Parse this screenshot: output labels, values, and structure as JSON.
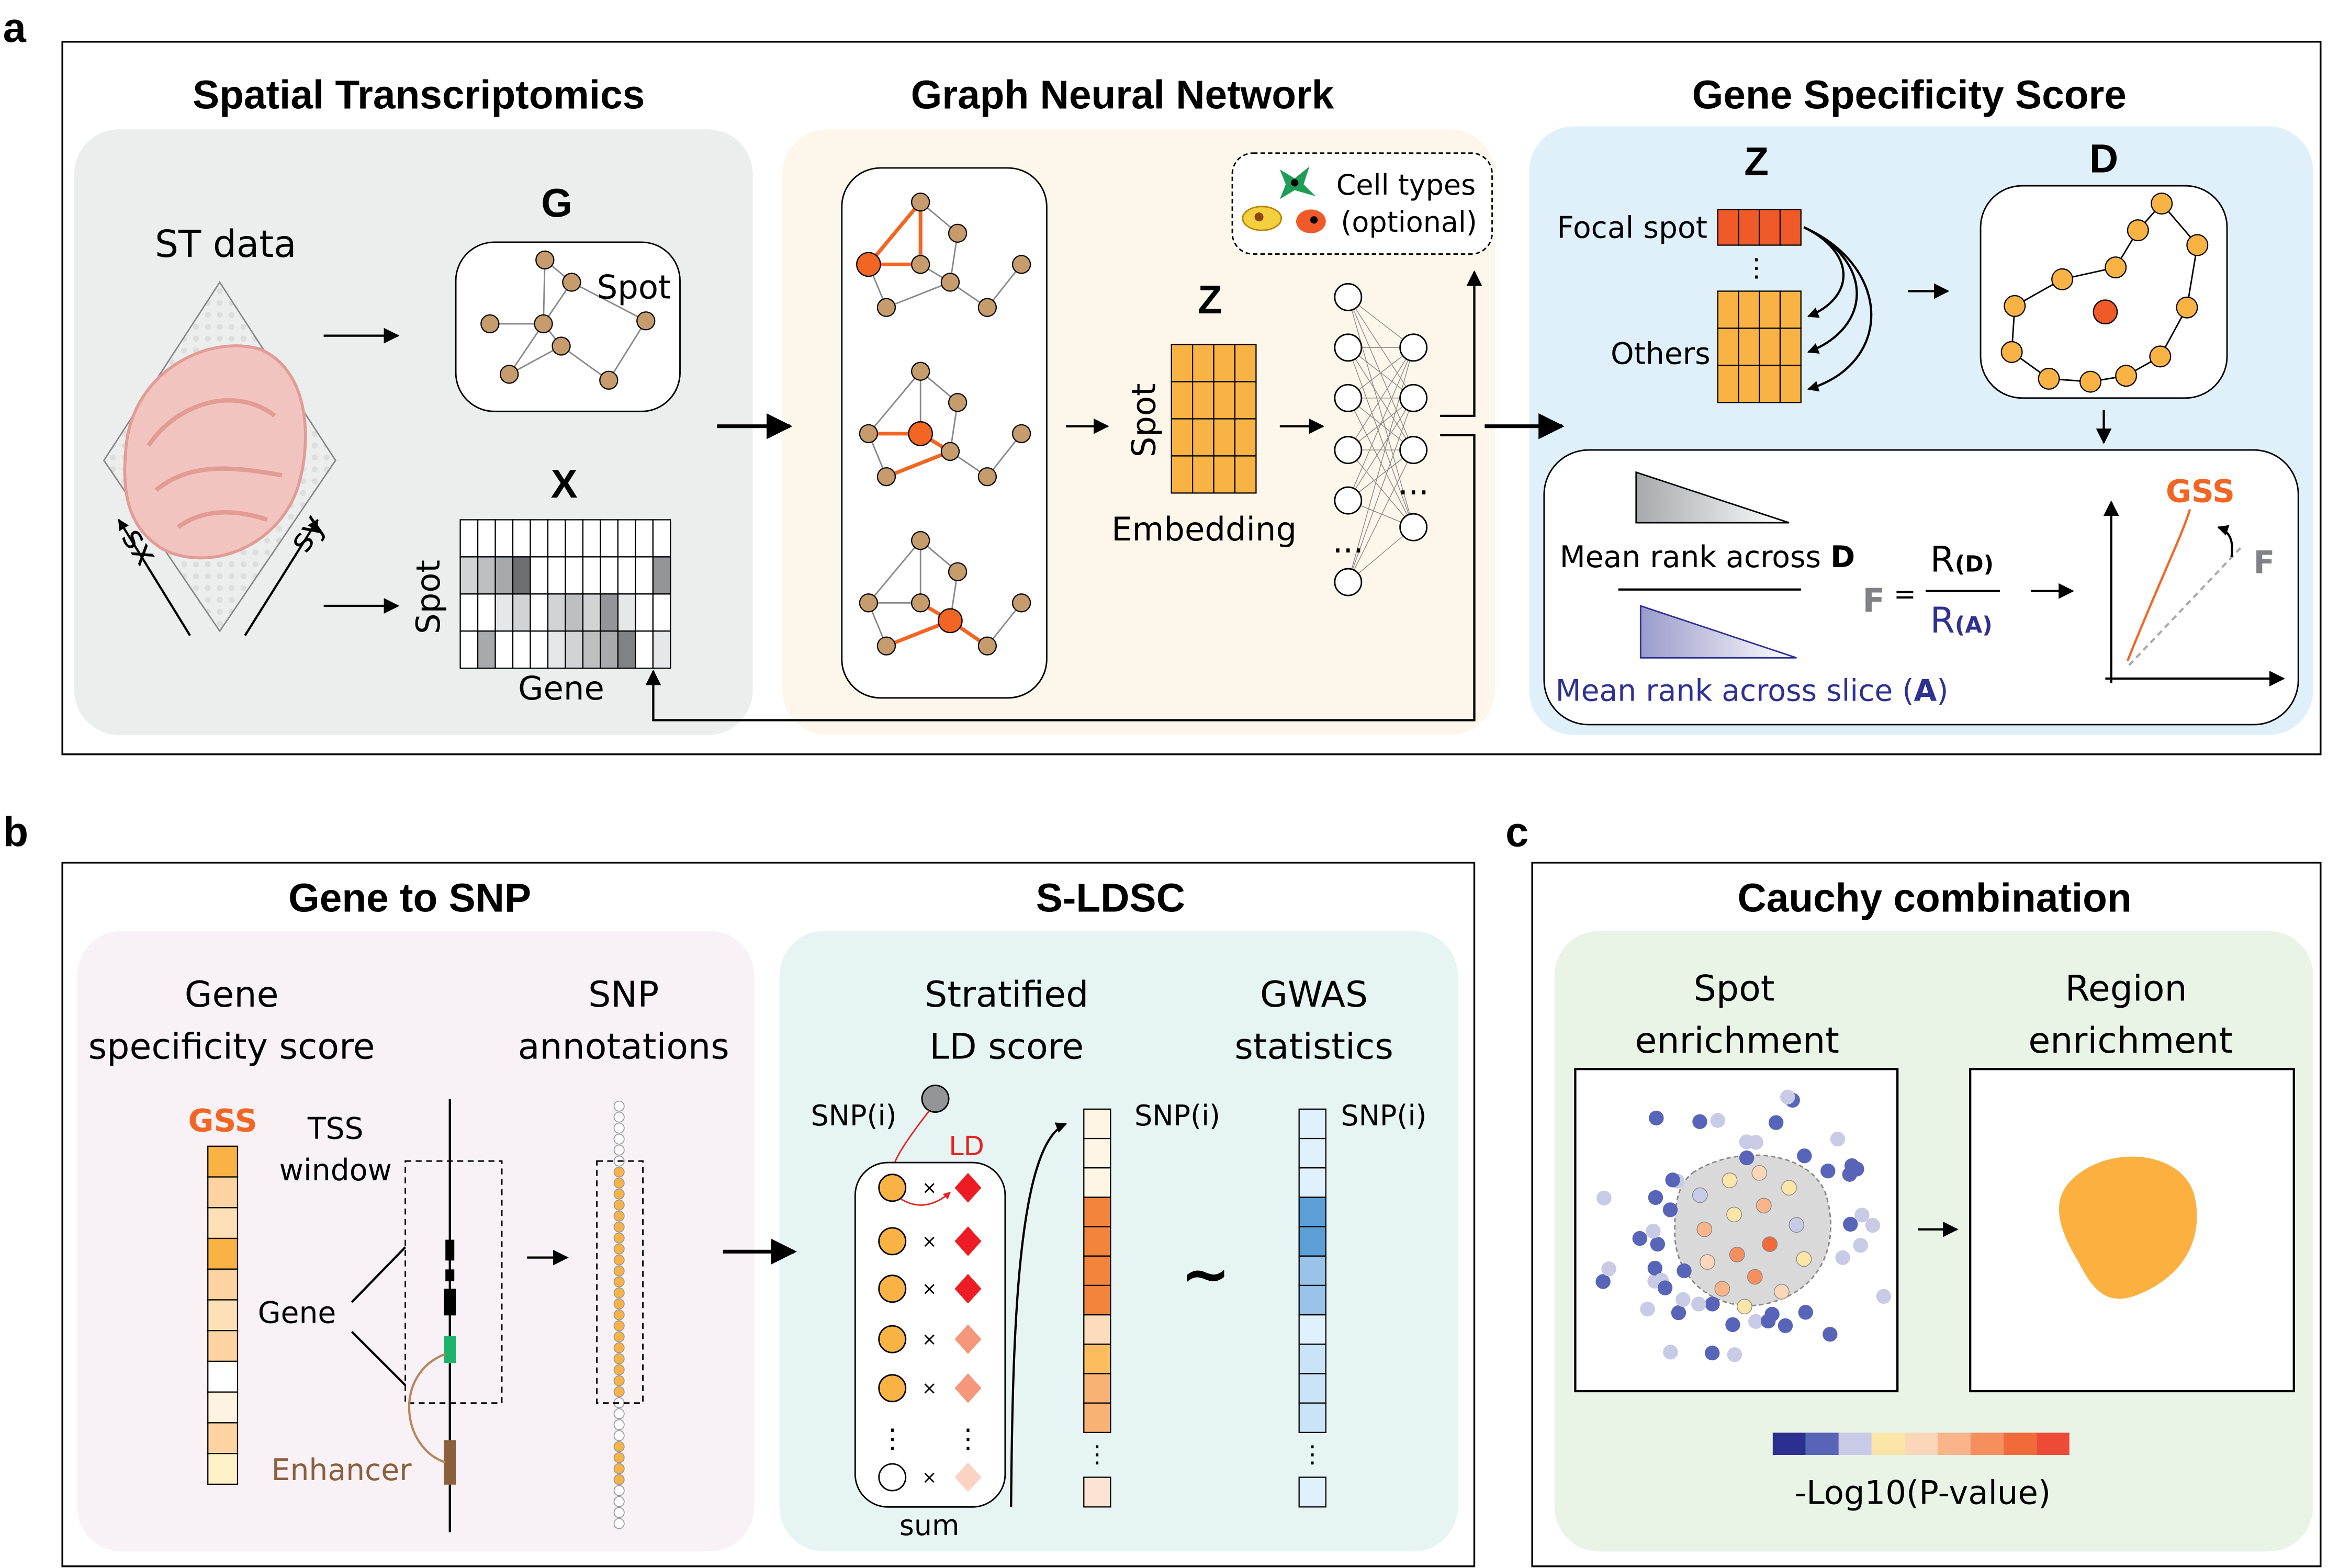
{
  "panel_labels": {
    "a": "a",
    "b": "b",
    "c": "c"
  },
  "panel_a": {
    "titles": {
      "spatial": "Spatial Transcriptomics",
      "gnn": "Graph Neural Network",
      "gss": "Gene Specificity Score"
    },
    "st_data": "ST data",
    "sx": "sx",
    "sy": "sy",
    "graph_label": "G",
    "spot": "Spot",
    "matrix_label": "X",
    "matrix_rows": "Spot",
    "matrix_cols": "Gene",
    "cell_types": "Cell types",
    "optional": "(optional)",
    "embedding_label": "Z",
    "embedding_rows": "Spot",
    "embedding": "Embedding",
    "ellipsis": "...",
    "gss_z": "Z",
    "gss_d": "D",
    "focal_spot": "Focal spot",
    "others": "Others",
    "mean_rank_d": "Mean rank across ",
    "d_bold": "D",
    "mean_rank_a": "Mean rank across slice (",
    "a_bold": "A",
    "close_paren": ")",
    "f": "F",
    "equals": "=",
    "r": "R",
    "rd": "(D)",
    "ra": "(A)",
    "gss": "GSS",
    "f_curve": "F"
  },
  "panel_b": {
    "titles": {
      "gene_to_snp": "Gene to SNP",
      "sldsc": "S-LDSC"
    },
    "gss_line1": "Gene",
    "gss_line2": "specificity score",
    "snp_line1": "SNP",
    "snp_line2": "annotations",
    "gss": "GSS",
    "tss": "TSS",
    "window": "window",
    "gene": "Gene",
    "enhancer": "Enhancer",
    "ld_line1": "Stratified",
    "ld_line2": "LD score",
    "gwas_line1": "GWAS",
    "gwas_line2": "statistics",
    "snp_i": "SNP(i)",
    "ld": "LD",
    "times": "×",
    "sum": "sum",
    "tilde": "~"
  },
  "panel_c": {
    "title": "Cauchy combination",
    "spot_line1": "Spot",
    "spot_line2": "enrichment",
    "region_line1": "Region",
    "region_line2": "enrichment",
    "colorbar_label": "-Log10(P-value)",
    "colorbar": [
      "#2b2f8f",
      "#5764b8",
      "#c8cae6",
      "#fbe6a8",
      "#fcd6b8",
      "#f9b48a",
      "#f58f5e",
      "#f06a3a",
      "#ee4b37"
    ]
  },
  "colors": {
    "orange": "#f9b345",
    "red_orange": "#f05a28",
    "gss_orange": "#f26522",
    "blue_text": "#2e3192",
    "node": "#c69c6d"
  }
}
